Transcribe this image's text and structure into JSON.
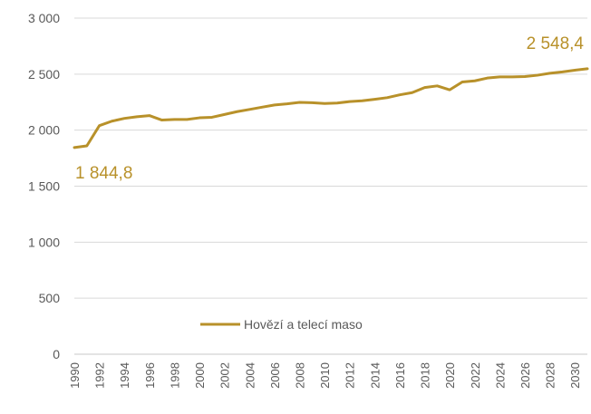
{
  "chart_data": {
    "type": "line",
    "title": "",
    "xlabel": "",
    "ylabel": "",
    "ylim": [
      0,
      3000
    ],
    "xlim": [
      1990,
      2031
    ],
    "grid": "horizontal",
    "legend_position": "bottom-center",
    "y_ticks": [
      "0",
      "500",
      "1 000",
      "1 500",
      "2 000",
      "2 500",
      "3 000"
    ],
    "x_ticks": [
      "1990",
      "1992",
      "1994",
      "1996",
      "1998",
      "2000",
      "2002",
      "2004",
      "2006",
      "2008",
      "2010",
      "2012",
      "2014",
      "2016",
      "2018",
      "2020",
      "2022",
      "2024",
      "2026",
      "2028",
      "2030"
    ],
    "series": [
      {
        "name": "Hovězí a telecí maso",
        "color": "#b8912a",
        "x": [
          1990,
          1991,
          1992,
          1993,
          1994,
          1995,
          1996,
          1997,
          1998,
          1999,
          2000,
          2001,
          2002,
          2003,
          2004,
          2005,
          2006,
          2007,
          2008,
          2009,
          2010,
          2011,
          2012,
          2013,
          2014,
          2015,
          2016,
          2017,
          2018,
          2019,
          2020,
          2021,
          2022,
          2023,
          2024,
          2025,
          2026,
          2027,
          2028,
          2029,
          2030,
          2031
        ],
        "values": [
          1844.8,
          1860,
          2040,
          2080,
          2105,
          2120,
          2130,
          2090,
          2095,
          2095,
          2110,
          2115,
          2140,
          2165,
          2185,
          2205,
          2225,
          2235,
          2248,
          2245,
          2238,
          2242,
          2255,
          2262,
          2275,
          2290,
          2315,
          2335,
          2380,
          2395,
          2360,
          2430,
          2440,
          2465,
          2475,
          2475,
          2478,
          2490,
          2508,
          2520,
          2535,
          2548.4
        ]
      }
    ],
    "annotations": [
      {
        "text": "1 844,8",
        "x": 1990,
        "y": 1844.8,
        "anchor": "below-right"
      },
      {
        "text": "2 548,4",
        "x": 2031,
        "y": 2548.4,
        "anchor": "above-left"
      }
    ]
  }
}
